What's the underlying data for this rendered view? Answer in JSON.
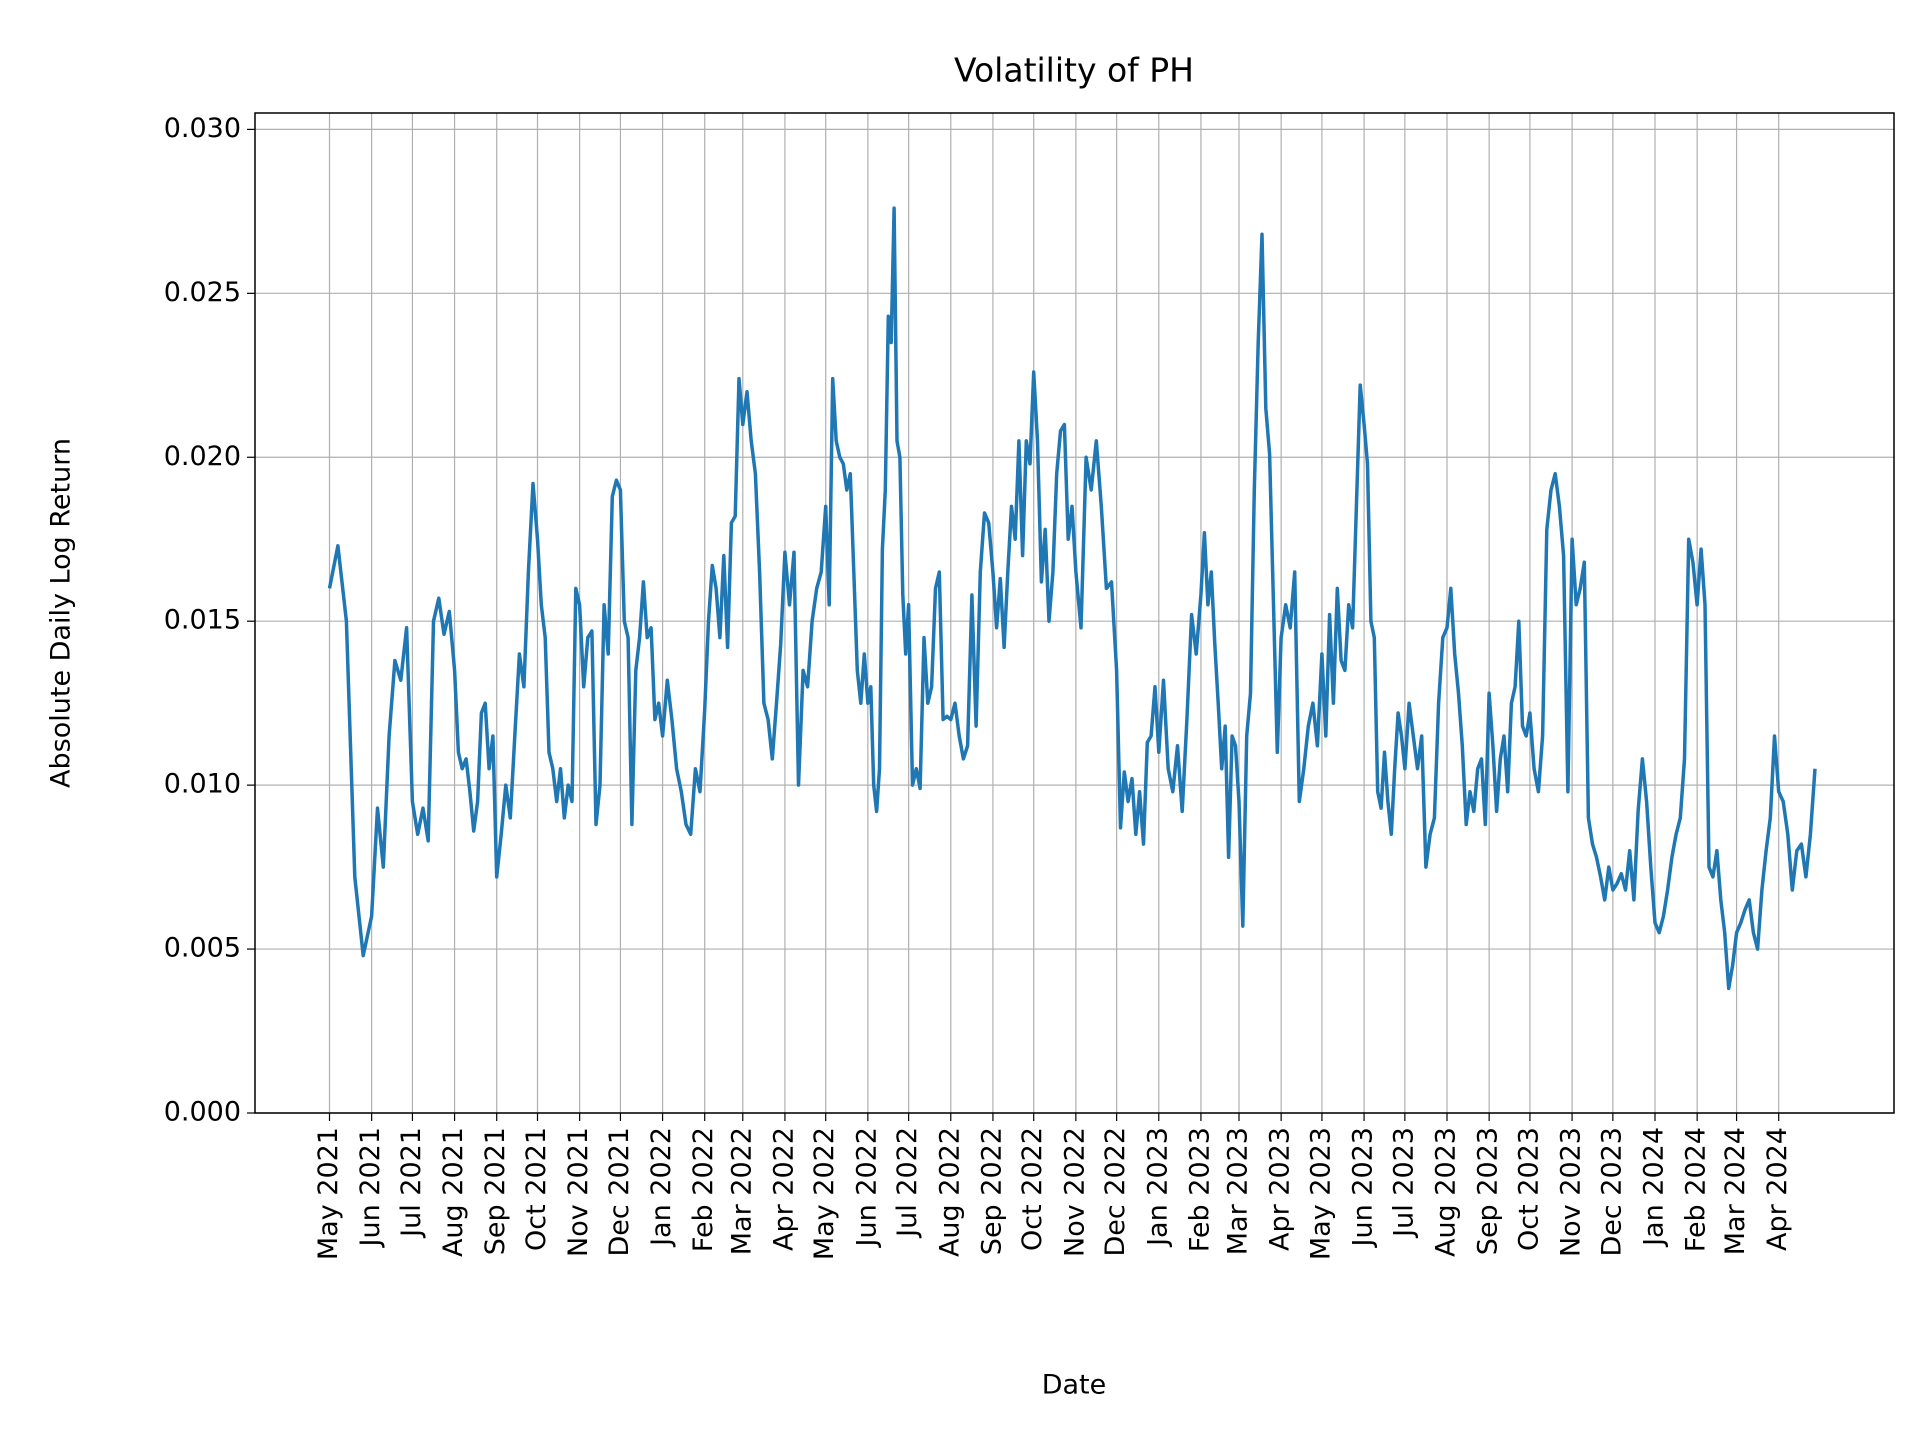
{
  "chart_data": {
    "type": "line",
    "title": "Volatility of PH",
    "xlabel": "Date",
    "ylabel": "Absolute Daily Log Return",
    "x": [
      "May 2021",
      "Jun 2021",
      "Jul 2021",
      "Aug 2021",
      "Sep 2021",
      "Oct 2021",
      "Nov 2021",
      "Dec 2021",
      "Jan 2022",
      "Feb 2022",
      "Mar 2022",
      "Apr 2022",
      "May 2022",
      "Jun 2022",
      "Jul 2022",
      "Aug 2022",
      "Sep 2022",
      "Oct 2022",
      "Nov 2022",
      "Dec 2022",
      "Jan 2023",
      "Feb 2023",
      "Mar 2023",
      "Apr 2023",
      "May 2023",
      "Jun 2023",
      "Jul 2023",
      "Aug 2023",
      "Sep 2023",
      "Oct 2023",
      "Nov 2023",
      "Dec 2023",
      "Jan 2024",
      "Feb 2024",
      "Mar 2024",
      "Apr 2024"
    ],
    "series": [
      {
        "color": "#1f77b4",
        "values": [
          [
            0.016,
            0.0173,
            0.015,
            0.0072,
            0.0048
          ],
          [
            0.006,
            0.0093,
            0.0075,
            0.0115,
            0.0138,
            0.0132,
            0.0148
          ],
          [
            0.0095,
            0.0085,
            0.0093,
            0.0083,
            0.015,
            0.0157,
            0.0146,
            0.0153
          ],
          [
            0.0135,
            0.011,
            0.0105,
            0.0108,
            0.0098,
            0.0086,
            0.0095,
            0.0122,
            0.0125,
            0.0105,
            0.0115
          ],
          [
            0.0072,
            0.0085,
            0.01,
            0.009,
            0.0115,
            0.014,
            0.013,
            0.0165,
            0.0192
          ],
          [
            0.0175,
            0.0155,
            0.0145,
            0.011,
            0.0105,
            0.0095,
            0.0105,
            0.009,
            0.01,
            0.0095,
            0.016
          ],
          [
            0.0155,
            0.013,
            0.0145,
            0.0147,
            0.0088,
            0.01,
            0.0155,
            0.014,
            0.0188,
            0.0193
          ],
          [
            0.019,
            0.015,
            0.0145,
            0.0088,
            0.0135,
            0.0145,
            0.0162,
            0.0145,
            0.0148,
            0.012,
            0.0125
          ],
          [
            0.0115,
            0.0132,
            0.012,
            0.0105,
            0.0098,
            0.0088,
            0.0085,
            0.0105,
            0.0098
          ],
          [
            0.0123,
            0.015,
            0.0167,
            0.016,
            0.0145,
            0.017,
            0.0142,
            0.018,
            0.0182,
            0.0224
          ],
          [
            0.021,
            0.022,
            0.0205,
            0.0195,
            0.0165,
            0.0125,
            0.012,
            0.0108,
            0.0125,
            0.0143
          ],
          [
            0.0171,
            0.0155,
            0.0171,
            0.01,
            0.0135,
            0.013,
            0.015,
            0.016,
            0.0165
          ],
          [
            0.0185,
            0.0155,
            0.0224,
            0.0205,
            0.02,
            0.0198,
            0.019,
            0.0195,
            0.0165,
            0.0135,
            0.0125,
            0.014
          ],
          [
            0.0125,
            0.013,
            0.01,
            0.0092,
            0.0105,
            0.0172,
            0.019,
            0.0243,
            0.0235,
            0.0276,
            0.0205,
            0.02,
            0.0158,
            0.014
          ],
          [
            0.0155,
            0.01,
            0.0105,
            0.0099,
            0.0145,
            0.0125,
            0.013,
            0.016,
            0.0165,
            0.012,
            0.0121
          ],
          [
            0.012,
            0.0125,
            0.0115,
            0.0108,
            0.0112,
            0.0158,
            0.0118,
            0.0165,
            0.0183,
            0.018
          ],
          [
            0.0165,
            0.0148,
            0.0163,
            0.0142,
            0.0165,
            0.0185,
            0.0175,
            0.0205,
            0.017,
            0.0205,
            0.0198
          ],
          [
            0.0226,
            0.0205,
            0.0162,
            0.0178,
            0.015,
            0.0165,
            0.0195,
            0.0208,
            0.021,
            0.0175,
            0.0185
          ],
          [
            0.0165,
            0.0148,
            0.02,
            0.019,
            0.0205,
            0.0185,
            0.016,
            0.0162
          ],
          [
            0.0135,
            0.0087,
            0.0104,
            0.0095,
            0.0102,
            0.0085,
            0.0098,
            0.0082,
            0.0113,
            0.0115,
            0.013
          ],
          [
            0.011,
            0.0132,
            0.0105,
            0.0098,
            0.0112,
            0.0092,
            0.012,
            0.0152,
            0.014
          ],
          [
            0.0158,
            0.0177,
            0.0155,
            0.0165,
            0.0143,
            0.0125,
            0.0105,
            0.0118,
            0.0078,
            0.0115,
            0.0112
          ],
          [
            0.0095,
            0.0057,
            0.0115,
            0.0128,
            0.019,
            0.0235,
            0.0268,
            0.0215,
            0.0201,
            0.0155,
            0.011
          ],
          [
            0.0145,
            0.0155,
            0.0148,
            0.0165,
            0.0095,
            0.0105,
            0.0118,
            0.0125,
            0.0112
          ],
          [
            0.014,
            0.0115,
            0.0152,
            0.0125,
            0.016,
            0.0138,
            0.0135,
            0.0155,
            0.0148,
            0.0185,
            0.0222
          ],
          [
            0.021,
            0.0198,
            0.015,
            0.0145,
            0.0098,
            0.0093,
            0.011,
            0.0095,
            0.0085,
            0.0105,
            0.0122,
            0.0115
          ],
          [
            0.0105,
            0.0125,
            0.0115,
            0.0105,
            0.0115,
            0.0075,
            0.0085,
            0.009,
            0.0125,
            0.0145
          ],
          [
            0.0148,
            0.016,
            0.014,
            0.0128,
            0.0112,
            0.0088,
            0.0098,
            0.0092,
            0.0105,
            0.0108,
            0.0088
          ],
          [
            0.0128,
            0.0112,
            0.0092,
            0.0108,
            0.0115,
            0.0098,
            0.0125,
            0.013,
            0.015,
            0.0118,
            0.0115
          ],
          [
            0.0122,
            0.0105,
            0.0098,
            0.0115,
            0.0178,
            0.019,
            0.0195,
            0.0185,
            0.017,
            0.0098
          ],
          [
            0.0175,
            0.0155,
            0.016,
            0.0168,
            0.009,
            0.0082,
            0.0078,
            0.0072,
            0.0065,
            0.0075
          ],
          [
            0.0068,
            0.007,
            0.0073,
            0.0068,
            0.008,
            0.0065,
            0.0092,
            0.0108,
            0.0095,
            0.0075
          ],
          [
            0.0058,
            0.0055,
            0.006,
            0.0068,
            0.0078,
            0.0085,
            0.009,
            0.0108,
            0.0175,
            0.0168
          ],
          [
            0.0155,
            0.0172,
            0.0155,
            0.0075,
            0.0072,
            0.008,
            0.0065,
            0.0055,
            0.0038,
            0.0045
          ],
          [
            0.0055,
            0.0058,
            0.0062,
            0.0065,
            0.0055,
            0.005,
            0.0068,
            0.008,
            0.009,
            0.0115
          ],
          [
            0.0098,
            0.0095,
            0.0085,
            0.0068,
            0.008,
            0.0082,
            0.0072,
            0.0085,
            0.0105
          ]
        ]
      }
    ],
    "ylim": [
      0,
      0.0305
    ],
    "yticks": [
      {
        "value": 0,
        "label": "0.000"
      },
      {
        "value": 0.005,
        "label": "0.005"
      },
      {
        "value": 0.01,
        "label": "0.010"
      },
      {
        "value": 0.015,
        "label": "0.015"
      },
      {
        "value": 0.02,
        "label": "0.020"
      },
      {
        "value": 0.025,
        "label": "0.025"
      },
      {
        "value": 0.03,
        "label": "0.030"
      }
    ],
    "grid": true
  }
}
